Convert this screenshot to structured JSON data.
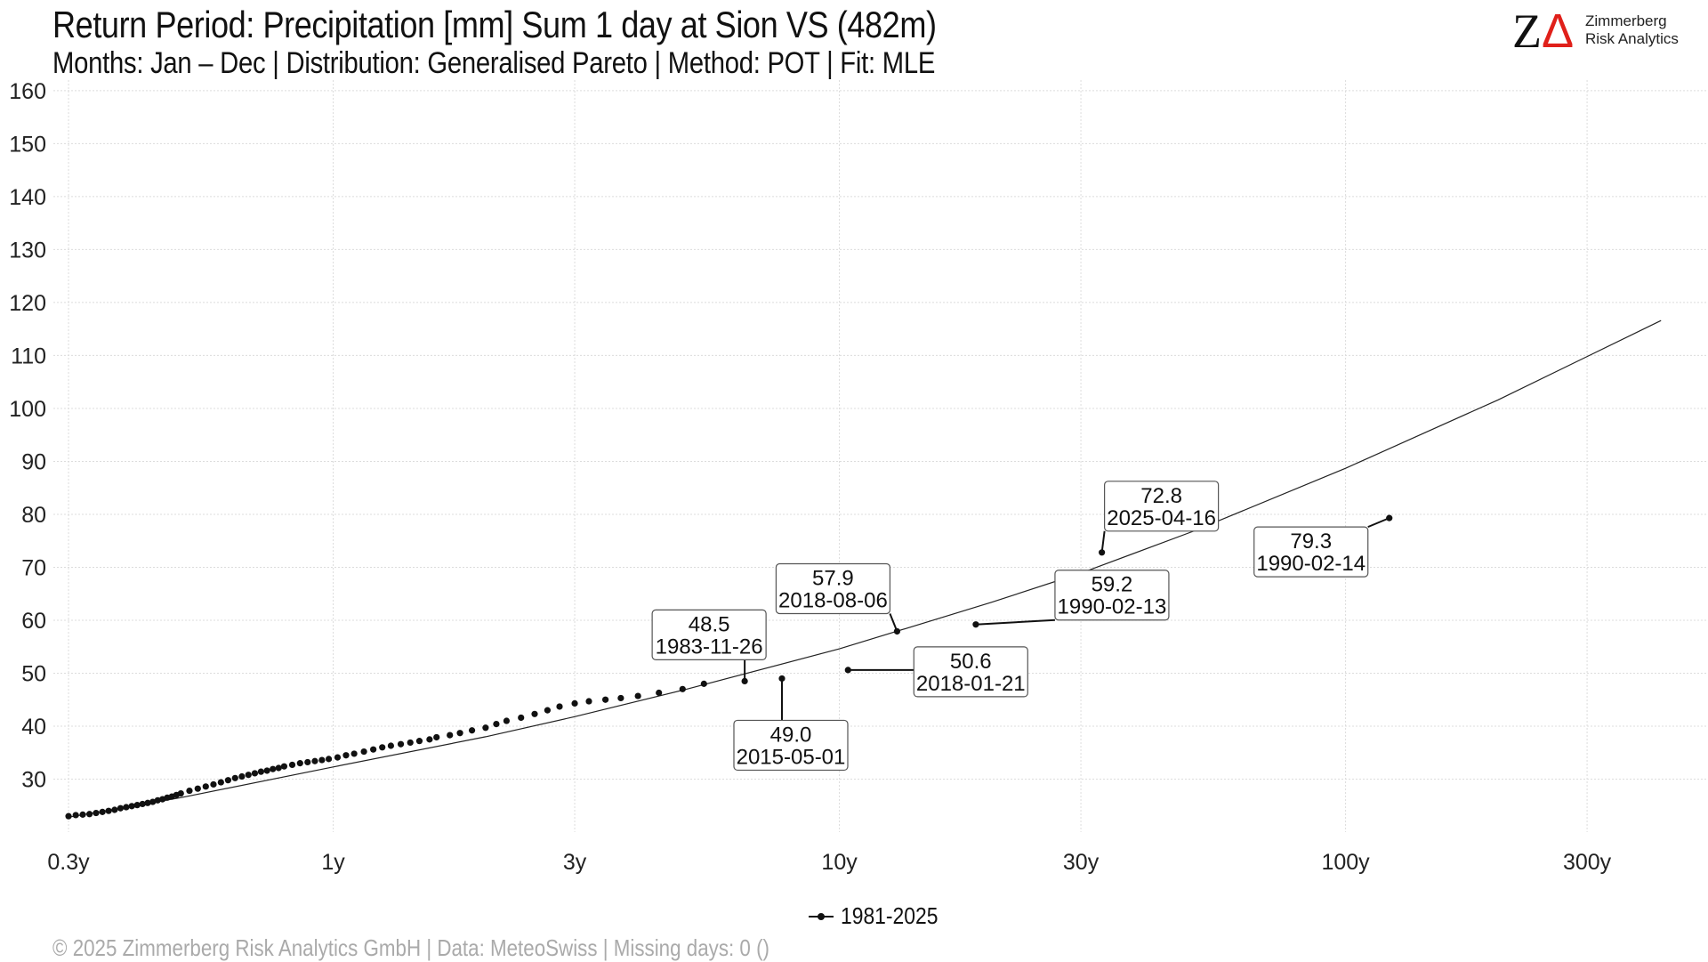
{
  "header": {
    "title": "Return Period: Precipitation [mm] Sum 1 day at Sion  VS (482m)",
    "subtitle": "Months: Jan – Dec | Distribution: Generalised Pareto | Method: POT | Fit: MLE"
  },
  "logo": {
    "mark": "Z",
    "mark_delta": "Δ",
    "line1": "Zimmerberg",
    "line2": "Risk Analytics",
    "accent_color": "#e0201a"
  },
  "footer": {
    "text": "©  2025 Zimmerberg Risk Analytics GmbH | Data: MeteoSwiss | Missing days: 0 ()"
  },
  "chart_data": {
    "type": "scatter",
    "title": "Return Period: Precipitation [mm] Sum 1 day at Sion  VS (482m)",
    "subtitle": "Months: Jan – Dec | Distribution: Generalised Pareto | Method: POT | Fit: MLE",
    "xlabel": "",
    "ylabel": "",
    "x_scale": "log",
    "x_unit": "return period (years)",
    "xlim": [
      0.28,
      520
    ],
    "ylim": [
      20,
      162
    ],
    "x_ticks": [
      0.3,
      1,
      3,
      10,
      30,
      100,
      300
    ],
    "x_tick_labels": [
      "0.3y",
      "1y",
      "3y",
      "10y",
      "30y",
      "100y",
      "300y"
    ],
    "y_ticks": [
      30,
      40,
      50,
      60,
      70,
      80,
      90,
      100,
      110,
      120,
      130,
      140,
      150,
      160
    ],
    "y_tick_labels": [
      "30",
      "40",
      "50",
      "60",
      "70",
      "80",
      "90",
      "100",
      "110",
      "120",
      "130",
      "140",
      "150",
      "160"
    ],
    "grid": true,
    "legend": {
      "position": "bottom",
      "entries": [
        "1981-2025"
      ]
    },
    "fit_curve": {
      "x": [
        0.3,
        0.5,
        1,
        2,
        3,
        5,
        10,
        20,
        30,
        50,
        100,
        200,
        420
      ],
      "y": [
        22.8,
        26.5,
        32.3,
        38.0,
        41.8,
        47.0,
        54.6,
        63.4,
        68.9,
        76.8,
        88.7,
        101.6,
        116.6
      ]
    },
    "series": [
      {
        "name": "1981-2025",
        "x": [
          0.3,
          0.31,
          0.32,
          0.33,
          0.34,
          0.35,
          0.36,
          0.37,
          0.38,
          0.39,
          0.4,
          0.41,
          0.42,
          0.43,
          0.44,
          0.45,
          0.46,
          0.47,
          0.48,
          0.49,
          0.5,
          0.52,
          0.54,
          0.56,
          0.58,
          0.6,
          0.62,
          0.64,
          0.66,
          0.68,
          0.7,
          0.72,
          0.74,
          0.76,
          0.78,
          0.8,
          0.83,
          0.86,
          0.89,
          0.92,
          0.95,
          0.98,
          1.02,
          1.06,
          1.1,
          1.15,
          1.2,
          1.25,
          1.3,
          1.36,
          1.42,
          1.48,
          1.55,
          1.6,
          1.7,
          1.78,
          1.88,
          2.0,
          2.1,
          2.2,
          2.35,
          2.5,
          2.65,
          2.8,
          3.0,
          3.2,
          3.45,
          3.7,
          4.0,
          4.4,
          4.9,
          5.4,
          6.5,
          7.7,
          10.4,
          13.0,
          18.6,
          33.0,
          122.0
        ],
        "y": [
          23.0,
          23.2,
          23.3,
          23.4,
          23.6,
          23.8,
          24.0,
          24.2,
          24.5,
          24.7,
          24.9,
          25.1,
          25.3,
          25.5,
          25.7,
          26.0,
          26.2,
          26.5,
          26.7,
          27.0,
          27.3,
          27.8,
          28.2,
          28.6,
          29.0,
          29.4,
          29.8,
          30.2,
          30.5,
          30.8,
          31.1,
          31.4,
          31.6,
          31.9,
          32.1,
          32.4,
          32.7,
          33.0,
          33.2,
          33.4,
          33.6,
          33.8,
          34.1,
          34.5,
          34.8,
          35.2,
          35.6,
          36.0,
          36.3,
          36.6,
          36.9,
          37.2,
          37.5,
          37.9,
          38.3,
          38.7,
          39.2,
          39.7,
          40.4,
          41.0,
          41.6,
          42.3,
          43.0,
          43.7,
          44.3,
          44.7,
          45.0,
          45.3,
          45.7,
          46.3,
          47.0,
          48.0,
          48.5,
          49.0,
          50.6,
          57.9,
          59.2,
          72.8,
          79.3
        ]
      }
    ],
    "annotations": [
      {
        "value": "48.5",
        "date": "1983-11-26",
        "x": 6.5,
        "y": 48.5
      },
      {
        "value": "49.0",
        "date": "2015-05-01",
        "x": 7.7,
        "y": 49.0
      },
      {
        "value": "50.6",
        "date": "2018-01-21",
        "x": 10.4,
        "y": 50.6
      },
      {
        "value": "57.9",
        "date": "2018-08-06",
        "x": 13.0,
        "y": 57.9
      },
      {
        "value": "59.2",
        "date": "1990-02-13",
        "x": 18.6,
        "y": 59.2
      },
      {
        "value": "72.8",
        "date": "2025-04-16",
        "x": 33.0,
        "y": 72.8
      },
      {
        "value": "79.3",
        "date": "1990-02-14",
        "x": 122.0,
        "y": 79.3
      }
    ]
  }
}
